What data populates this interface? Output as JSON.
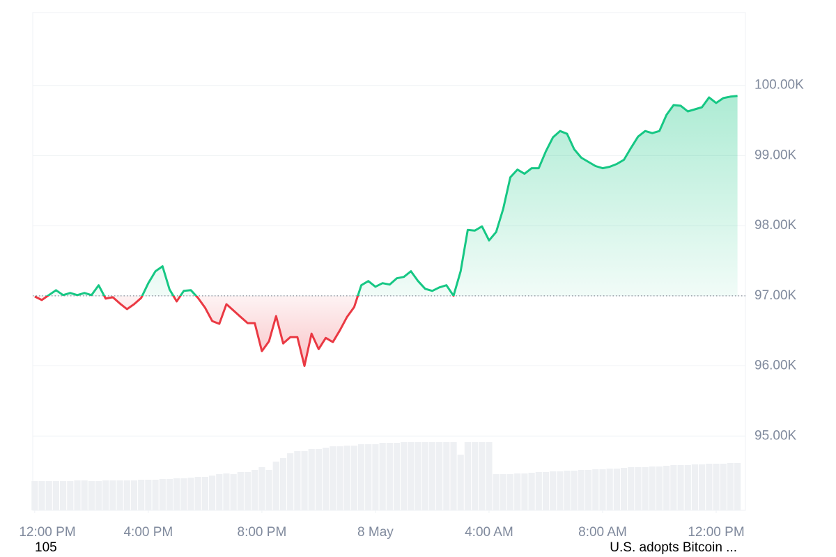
{
  "chart_data": {
    "type": "baseline-line",
    "x": [
      0,
      0.25,
      0.5,
      0.75,
      1,
      1.25,
      1.5,
      1.75,
      2,
      2.25,
      2.5,
      2.75,
      3,
      3.25,
      3.5,
      3.75,
      4,
      4.25,
      4.5,
      4.75,
      5,
      5.25,
      5.5,
      5.75,
      6,
      6.25,
      6.5,
      6.75,
      7,
      7.25,
      7.5,
      7.75,
      8,
      8.25,
      8.5,
      8.75,
      9,
      9.25,
      9.5,
      9.75,
      10,
      10.25,
      10.5,
      10.75,
      11,
      11.25,
      11.5,
      11.75,
      12,
      12.25,
      12.5,
      12.75,
      13,
      13.25,
      13.5,
      13.75,
      14,
      14.25,
      14.5,
      14.75,
      15,
      15.25,
      15.5,
      15.75,
      16,
      16.25,
      16.5,
      16.75,
      17,
      17.25,
      17.5,
      17.75,
      18,
      18.25,
      18.5,
      18.75,
      19,
      19.25,
      19.5,
      19.75,
      20,
      20.25,
      20.5,
      20.75,
      21,
      21.25,
      21.5,
      21.75,
      22,
      22.25,
      22.5,
      22.75,
      23,
      23.25,
      23.5,
      23.75,
      24,
      24.25,
      24.5,
      24.75
    ],
    "values": [
      96990,
      96940,
      97010,
      97080,
      97010,
      97040,
      97010,
      97040,
      97010,
      97150,
      96960,
      96980,
      96890,
      96810,
      96880,
      96970,
      97180,
      97350,
      97420,
      97090,
      96920,
      97070,
      97080,
      96970,
      96830,
      96640,
      96600,
      96880,
      96790,
      96700,
      96610,
      96610,
      96210,
      96350,
      96710,
      96320,
      96410,
      96410,
      96000,
      96460,
      96240,
      96400,
      96340,
      96510,
      96700,
      96840,
      97150,
      97210,
      97130,
      97180,
      97160,
      97250,
      97270,
      97350,
      97210,
      97100,
      97070,
      97120,
      97150,
      97000,
      97350,
      97940,
      97930,
      97990,
      97790,
      97910,
      98240,
      98690,
      98800,
      98740,
      98820,
      98820,
      99060,
      99260,
      99350,
      99310,
      99090,
      98970,
      98910,
      98850,
      98820,
      98840,
      98880,
      98940,
      99110,
      99270,
      99350,
      99320,
      99350,
      99580,
      99720,
      99710,
      99630,
      99660,
      99690,
      99830,
      99750,
      99820,
      99840,
      99850
    ],
    "volume": {
      "color": "#eef0f3",
      "lim": [
        0,
        100
      ],
      "values": [
        42,
        42,
        42,
        42,
        42,
        42,
        43,
        43,
        42,
        42,
        43,
        43,
        43,
        43,
        43,
        44,
        44,
        44,
        45,
        45,
        46,
        46,
        47,
        48,
        48,
        50,
        52,
        53,
        52,
        55,
        55,
        58,
        62,
        58,
        70,
        75,
        82,
        85,
        85,
        88,
        88,
        90,
        92,
        92,
        93,
        93,
        95,
        95,
        95,
        97,
        97,
        97,
        98,
        98,
        98,
        98,
        98,
        98,
        98,
        98,
        80,
        98,
        98,
        98,
        98,
        52,
        52,
        52,
        53,
        53,
        54,
        55,
        55,
        56,
        56,
        57,
        57,
        58,
        58,
        59,
        59,
        60,
        60,
        61,
        62,
        62,
        62,
        63,
        63,
        64,
        65,
        65,
        65,
        66,
        66,
        67,
        67,
        67,
        68,
        68
      ]
    },
    "baseline": 97000,
    "up_color": "#16c784",
    "down_color": "#ea3943",
    "grid": true,
    "xlim": [
      -0.07,
      25.03
    ],
    "xticks": [
      {
        "value": 0,
        "label": "12:00 PM"
      },
      {
        "value": 4,
        "label": "4:00 PM"
      },
      {
        "value": 8,
        "label": "8:00 PM"
      },
      {
        "value": 12,
        "label": "8 May"
      },
      {
        "value": 16,
        "label": "4:00 AM"
      },
      {
        "value": 20,
        "label": "8:00 AM"
      },
      {
        "value": 24,
        "label": "12:00 PM"
      }
    ],
    "ylim": [
      93940,
      101040
    ],
    "yticks": [
      {
        "value": 95000,
        "label": "95.00K"
      },
      {
        "value": 96000,
        "label": "96.00K"
      },
      {
        "value": 97000,
        "label": "97.00K"
      },
      {
        "value": 98000,
        "label": "98.00K"
      },
      {
        "value": 99000,
        "label": "99.00K"
      },
      {
        "value": 100000,
        "label": "100.00K"
      }
    ],
    "annotations": [
      "105",
      "U.S. adopts Bitcoin ..."
    ]
  }
}
